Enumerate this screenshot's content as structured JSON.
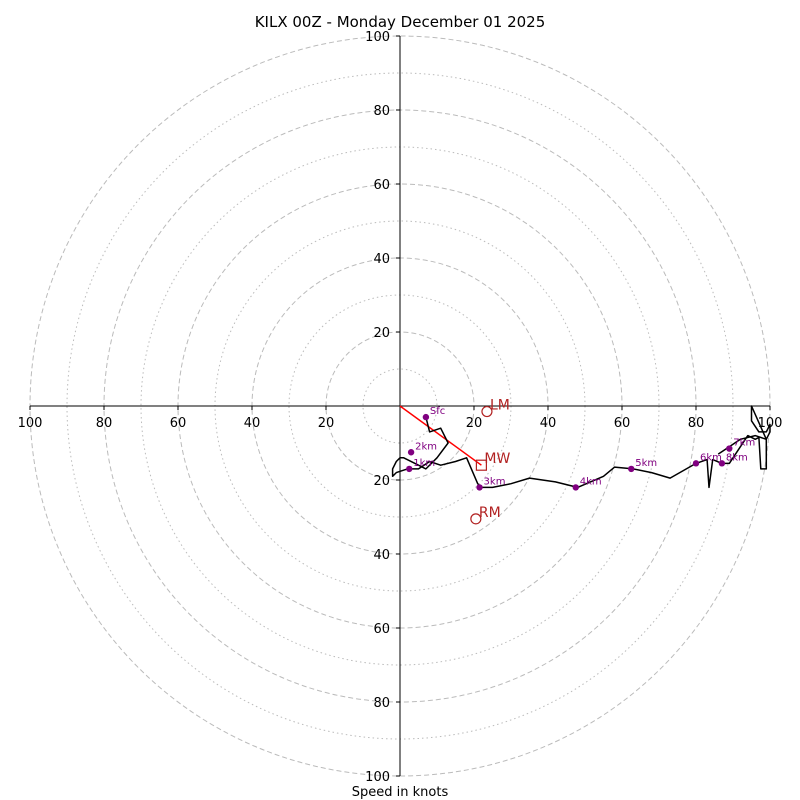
{
  "chart_data": {
    "type": "hodograph",
    "title": "KILX 00Z - Monday December 01 2025",
    "xlabel": "Speed in knots",
    "ring_max": 100,
    "major_rings": [
      20,
      40,
      60,
      80,
      100
    ],
    "minor_rings": [
      10,
      30,
      50,
      70,
      90
    ],
    "tick_labels": {
      "x_left": [
        "100",
        "80",
        "60",
        "40",
        "20"
      ],
      "x_right": [
        "20",
        "40",
        "60",
        "80",
        "100"
      ],
      "y_top": [
        "20",
        "40",
        "60",
        "80",
        "100"
      ],
      "y_bottom": [
        "20",
        "40",
        "60",
        "80",
        "100"
      ]
    },
    "trace": {
      "color": "#000000",
      "points": [
        [
          7,
          -3
        ],
        [
          8,
          -7
        ],
        [
          11,
          -6
        ],
        [
          13,
          -10
        ],
        [
          10,
          -14
        ],
        [
          7,
          -17
        ],
        [
          5,
          -16
        ],
        [
          1,
          -14
        ],
        [
          0,
          -14
        ],
        [
          -1,
          -15
        ],
        [
          -2,
          -17
        ],
        [
          -2,
          -19
        ],
        [
          -1,
          -18
        ],
        [
          2,
          -17
        ],
        [
          5,
          -17
        ],
        [
          8,
          -15
        ],
        [
          11,
          -16
        ],
        [
          15,
          -15
        ],
        [
          18,
          -14
        ],
        [
          21,
          -21
        ],
        [
          22,
          -22
        ],
        [
          25,
          -22
        ],
        [
          30,
          -21
        ],
        [
          35,
          -19.5
        ],
        [
          42,
          -20.5
        ],
        [
          48,
          -22
        ],
        [
          55,
          -19
        ],
        [
          58,
          -16.5
        ],
        [
          63,
          -17
        ],
        [
          68,
          -18
        ],
        [
          73,
          -19.5
        ],
        [
          80,
          -15.5
        ],
        [
          83,
          -14.5
        ],
        [
          83.5,
          -22
        ],
        [
          84.5,
          -14.5
        ],
        [
          87,
          -15.5
        ],
        [
          89,
          -15.5
        ],
        [
          92,
          -11
        ],
        [
          94,
          -8
        ],
        [
          96,
          -9
        ],
        [
          97,
          -8.5
        ],
        [
          97.5,
          -17
        ],
        [
          99,
          -17
        ],
        [
          99,
          -9
        ],
        [
          100,
          -7
        ],
        [
          100,
          -5
        ],
        [
          99,
          -7
        ],
        [
          97,
          -7
        ],
        [
          95,
          -4
        ],
        [
          95,
          0
        ],
        [
          99,
          -9
        ],
        [
          96,
          -8
        ],
        [
          92,
          -9
        ],
        [
          89,
          -11
        ],
        [
          86,
          -13
        ]
      ]
    },
    "height_markers": [
      {
        "label": "Sfc",
        "u": 7,
        "v": -3
      },
      {
        "label": "1km",
        "u": 2.5,
        "v": -17
      },
      {
        "label": "2km",
        "u": 3,
        "v": -12.5
      },
      {
        "label": "3km",
        "u": 21.5,
        "v": -22
      },
      {
        "label": "4km",
        "u": 47.5,
        "v": -22
      },
      {
        "label": "5km",
        "u": 62.5,
        "v": -17
      },
      {
        "label": "6km",
        "u": 80,
        "v": -15.5
      },
      {
        "label": "7km",
        "u": 89,
        "v": -11.5
      },
      {
        "label": "8km",
        "u": 87,
        "v": -15.5
      }
    ],
    "motion_markers": [
      {
        "label": "LM",
        "u": 23.5,
        "v": -1.5,
        "shape": "circle"
      },
      {
        "label": "MW",
        "u": 22,
        "v": -16,
        "shape": "square"
      },
      {
        "label": "RM",
        "u": 20.5,
        "v": -30.5,
        "shape": "circle"
      }
    ],
    "mean_wind_vector": {
      "u0": 0,
      "v0": 0,
      "u1": 22,
      "v1": -16
    },
    "colors": {
      "ring": "#bbbbbb",
      "axis": "#000000",
      "height_marker": "#800080",
      "motion_marker": "#b22222",
      "vector": "#ff0000"
    }
  }
}
